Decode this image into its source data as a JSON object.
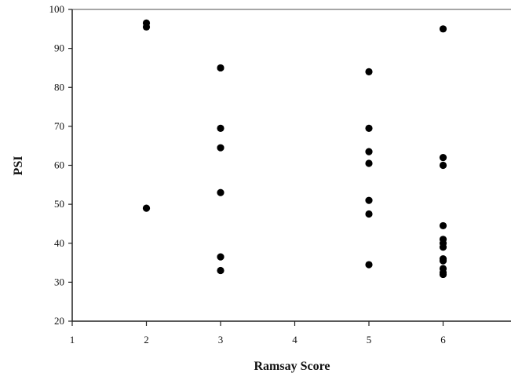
{
  "chart_data": {
    "type": "scatter",
    "title": "",
    "xlabel": "Ramsay Score",
    "ylabel": "PSI",
    "xlim": [
      1,
      7
    ],
    "ylim": [
      20,
      100
    ],
    "x_ticks": [
      1,
      2,
      3,
      4,
      5,
      6
    ],
    "x_tick_labels": [
      "1",
      "2",
      "3",
      "4",
      "5",
      "6"
    ],
    "y_ticks": [
      20,
      30,
      40,
      50,
      60,
      70,
      80,
      90,
      100
    ],
    "y_tick_labels": [
      "20",
      "30",
      "40",
      "50",
      "60",
      "70",
      "80",
      "90",
      "100"
    ],
    "grid": false,
    "legend": "none",
    "marker_color": "#000000",
    "points": [
      {
        "x": 2,
        "y": 96.5
      },
      {
        "x": 2,
        "y": 95.5
      },
      {
        "x": 2,
        "y": 49
      },
      {
        "x": 3,
        "y": 85
      },
      {
        "x": 3,
        "y": 69.5
      },
      {
        "x": 3,
        "y": 64.5
      },
      {
        "x": 3,
        "y": 53
      },
      {
        "x": 3,
        "y": 36.5
      },
      {
        "x": 3,
        "y": 33
      },
      {
        "x": 5,
        "y": 84
      },
      {
        "x": 5,
        "y": 69.5
      },
      {
        "x": 5,
        "y": 63.5
      },
      {
        "x": 5,
        "y": 60.5
      },
      {
        "x": 5,
        "y": 51
      },
      {
        "x": 5,
        "y": 47.5
      },
      {
        "x": 5,
        "y": 34.5
      },
      {
        "x": 6,
        "y": 95
      },
      {
        "x": 6,
        "y": 62
      },
      {
        "x": 6,
        "y": 60
      },
      {
        "x": 6,
        "y": 44.5
      },
      {
        "x": 6,
        "y": 41
      },
      {
        "x": 6,
        "y": 40
      },
      {
        "x": 6,
        "y": 39
      },
      {
        "x": 6,
        "y": 36
      },
      {
        "x": 6,
        "y": 35.5
      },
      {
        "x": 6,
        "y": 33.5
      },
      {
        "x": 6,
        "y": 32.5
      },
      {
        "x": 6,
        "y": 32
      }
    ]
  }
}
